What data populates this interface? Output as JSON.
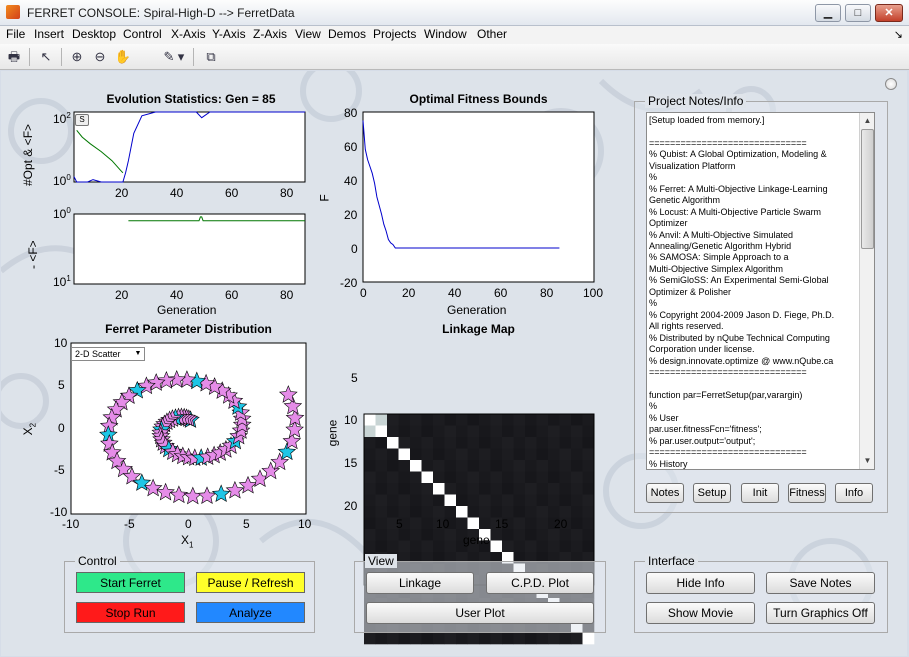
{
  "window": {
    "title": "FERRET CONSOLE: Spiral-High-D --> FerretData",
    "buttons": {
      "minimize": "▁",
      "maximize": "□",
      "close": "✕"
    }
  },
  "menu": [
    "File",
    "Insert",
    "Desktop",
    "Control",
    "X-Axis",
    "Y-Axis",
    "Z-Axis",
    "View",
    "Demos",
    "Projects",
    "Window",
    "Other"
  ],
  "menu_overflow": "↘",
  "toolbar": [
    {
      "name": "print-icon",
      "glyph": "🖶"
    },
    {
      "name": "pointer-icon",
      "glyph": "↖"
    },
    {
      "name": "zoom-in-icon",
      "glyph": "⊕"
    },
    {
      "name": "zoom-out-icon",
      "glyph": "⊖"
    },
    {
      "name": "pan-icon",
      "glyph": "✋"
    },
    {
      "name": "data-cursor-icon",
      "glyph": "✎"
    },
    {
      "name": "dropdown-arrow-icon",
      "glyph": "▾"
    },
    {
      "name": "dock-figure-icon",
      "glyph": "⧉"
    }
  ],
  "evolution": {
    "title": "Evolution Statistics: Gen = 85",
    "top_ylabel": "#Opt & <F>",
    "bottom_ylabel": "- <F>",
    "xlabel": "Generation",
    "s_button": "S"
  },
  "fitness": {
    "title": "Optimal Fitness Bounds",
    "ylabel": "F",
    "xlabel": "Generation"
  },
  "param": {
    "title": "Ferret Parameter Distribution",
    "xlabel": "X",
    "xsub": "1",
    "ylabel": "X",
    "ysub": "2",
    "dropdown": "2-D Scatter"
  },
  "linkage": {
    "title": "Linkage Map",
    "xlabel": "gene",
    "ylabel": "gene"
  },
  "notes": {
    "title": "Project Notes/Info",
    "text": "[Setup loaded from memory.]\n\n==============================\n% Qubist: A Global Optimization, Modeling &\nVisualization Platform\n%\n% Ferret: A Multi-Objective Linkage-Learning\nGenetic Algorithm\n% Locust: A Multi-Objective Particle Swarm\nOptimizer\n% Anvil: A Multi-Objective Simulated\nAnnealing/Genetic Algorithm Hybrid\n% SAMOSA: Simple Approach to a\nMulti-Objective Simplex Algorithm\n% SemiGloSS: An Experimental Semi-Global\nOptimizer & Polisher\n%\n% Copyright 2004-2009 Jason D. Fiege, Ph.D.\nAll rights reserved.\n% Distributed by nQube Technical Computing\nCorporation under license.\n% design.innovate.optimize @ www.nQube.ca\n==============================\n\nfunction par=FerretSetup(par,varargin)\n%\n% User\npar.user.fitnessFcn='fitness';\n% par.user.output='output';\n==============================\n% History\npar.history.dataDir='FerretData';",
    "buttons": [
      "Notes",
      "Setup",
      "Init",
      "Fitness",
      "Info"
    ]
  },
  "control": {
    "title": "Control",
    "start": "Start Ferret",
    "pause": "Pause / Refresh",
    "stop": "Stop Run",
    "analyze": "Analyze"
  },
  "view": {
    "title": "View",
    "linkage": "Linkage",
    "cpd": "C.P.D. Plot",
    "user": "User Plot"
  },
  "interface": {
    "title": "Interface",
    "hide": "Hide Info",
    "save": "Save Notes",
    "movie": "Show Movie",
    "graphics": "Turn Graphics Off"
  },
  "colors": {
    "start": "#2ee88a",
    "pause": "#ffff2a",
    "stop": "#ff1a1a",
    "analyze": "#2288ff",
    "star_pink": "#e58ce8",
    "star_cyan": "#1ec6e6",
    "line_blue": "#0000cc",
    "line_green": "#007700"
  },
  "chart_data": [
    {
      "type": "line",
      "title": "Evolution Statistics: Gen = 85",
      "ylabel": "#Opt & <F>",
      "y_scale": "log",
      "xlim": [
        0,
        85
      ],
      "ylim": [
        1,
        200
      ],
      "x_ticks": [
        20,
        40,
        60,
        80
      ],
      "y_ticks": [
        "10^0",
        "10^2"
      ],
      "series": [
        {
          "color": "#0000cc",
          "x": [
            0,
            1,
            2,
            3,
            5,
            7,
            10,
            13,
            15,
            16,
            17,
            18,
            19,
            20,
            22,
            25,
            30,
            40,
            45,
            47,
            50,
            55,
            60,
            65,
            70,
            75,
            80,
            85
          ],
          "y": [
            1.5,
            1,
            1,
            1,
            1,
            1.2,
            1,
            1,
            1,
            1,
            1,
            1,
            2,
            5,
            40,
            150,
            200,
            200,
            200,
            130,
            200,
            200,
            200,
            200,
            200,
            200,
            200,
            200
          ]
        },
        {
          "color": "#007700",
          "x": [
            1,
            3,
            6,
            10,
            14,
            17,
            18
          ],
          "y": [
            50,
            30,
            18,
            10,
            5,
            2.5,
            2
          ]
        }
      ]
    },
    {
      "type": "line",
      "ylabel": "- <F>",
      "y_scale": "log",
      "xlim": [
        0,
        85
      ],
      "ylim": [
        10,
        1
      ],
      "x_ticks": [
        20,
        40,
        60,
        80
      ],
      "y_ticks": [
        "10^0",
        "10^1"
      ],
      "series": [
        {
          "color": "#007700",
          "x": [
            20,
            46,
            46.5,
            47,
            47.5,
            48,
            85
          ],
          "y": [
            1.25,
            1.25,
            1.1,
            1.1,
            1.25,
            1.25,
            1.25
          ]
        }
      ]
    },
    {
      "type": "line",
      "title": "Optimal Fitness Bounds",
      "xlabel": "Generation",
      "ylabel": "F",
      "xlim": [
        0,
        100
      ],
      "ylim": [
        -20,
        80
      ],
      "x_ticks": [
        0,
        20,
        40,
        60,
        80,
        100
      ],
      "y_ticks": [
        -20,
        0,
        20,
        40,
        60,
        80
      ],
      "series": [
        {
          "color": "#0000cc",
          "x": [
            0,
            1,
            2,
            3,
            4,
            5,
            6,
            7,
            8,
            9,
            10,
            11,
            12,
            13,
            14,
            15,
            20,
            40,
            60,
            85
          ],
          "y": [
            75,
            58,
            52,
            48,
            44,
            38,
            30,
            25,
            20,
            14,
            10,
            5,
            3,
            2,
            0,
            0,
            0,
            0,
            0,
            0
          ]
        }
      ]
    },
    {
      "type": "scatter",
      "title": "Ferret Parameter Distribution",
      "xlabel": "X1",
      "ylabel": "X2",
      "xlim": [
        -10,
        10
      ],
      "ylim": [
        -10,
        10
      ],
      "x_ticks": [
        -10,
        -5,
        0,
        5,
        10
      ],
      "y_ticks": [
        -10,
        -5,
        0,
        5,
        10
      ],
      "spiral": {
        "theta_start": 1.4,
        "theta_end": 13.0,
        "radius_per_radian": 0.72,
        "count": 78
      },
      "highlighted_every": 6
    },
    {
      "type": "heatmap",
      "title": "Linkage Map",
      "xlabel": "gene",
      "ylabel": "gene",
      "size": 20,
      "x_ticks": [
        5,
        10,
        15,
        20
      ],
      "y_ticks": [
        5,
        10,
        15,
        20
      ],
      "diagonal": "white",
      "off_diagonal": "dark"
    }
  ]
}
